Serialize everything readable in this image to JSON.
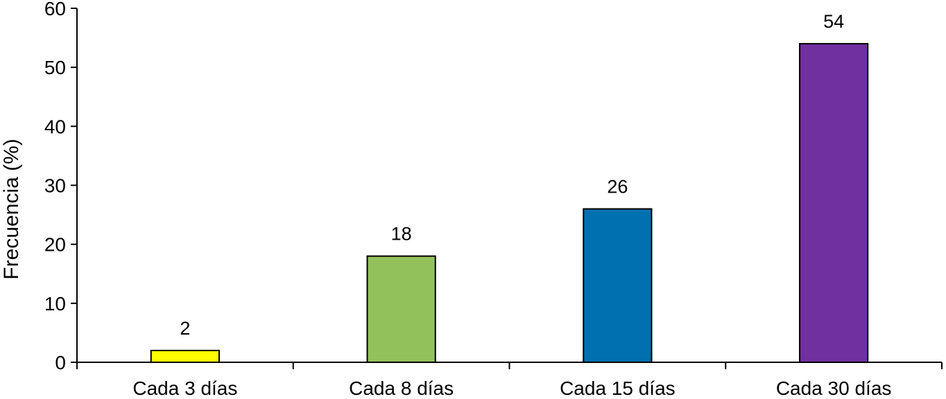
{
  "chart_data": {
    "type": "bar",
    "title": "",
    "xlabel": "",
    "ylabel": "Frecuencia (%)",
    "categories": [
      "Cada 3 días",
      "Cada 8 días",
      "Cada 15 días",
      "Cada 30 días"
    ],
    "values": [
      2,
      18,
      26,
      54
    ],
    "data_labels": [
      "2",
      "18",
      "26",
      "54"
    ],
    "colors": [
      "#ffff00",
      "#92c15b",
      "#0070b0",
      "#7030a0"
    ],
    "ylim": [
      0,
      60
    ],
    "yticks": [
      "0",
      "10",
      "20",
      "30",
      "40",
      "50",
      "60"
    ],
    "grid": false,
    "legend": "none"
  }
}
